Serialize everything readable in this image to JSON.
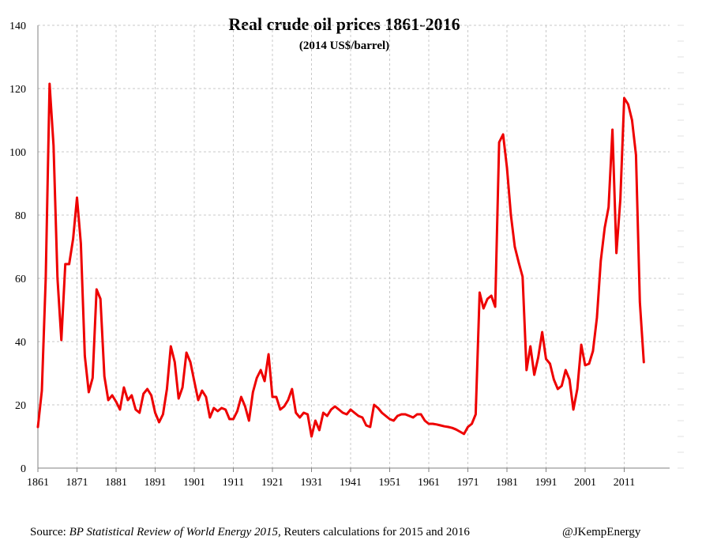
{
  "chart_data": {
    "type": "line",
    "title": "Real crude oil prices 1861-2016",
    "subtitle": "(2014 US$/barrel)",
    "xlabel": "",
    "ylabel": "",
    "xlim": [
      1861,
      2016
    ],
    "ylim": [
      0,
      140
    ],
    "yticks": [
      "0",
      "20",
      "40",
      "60",
      "80",
      "100",
      "120",
      "140"
    ],
    "xticks": [
      "1861",
      "1871",
      "1881",
      "1891",
      "1901",
      "1911",
      "1921",
      "1931",
      "1941",
      "1951",
      "1961",
      "1971",
      "1981",
      "1991",
      "2001",
      "2011"
    ],
    "grid": true,
    "series": [
      {
        "name": "Real crude oil price",
        "color": "#ee0000",
        "x": [
          1861,
          1862,
          1863,
          1864,
          1865,
          1866,
          1867,
          1868,
          1869,
          1870,
          1871,
          1872,
          1873,
          1874,
          1875,
          1876,
          1877,
          1878,
          1879,
          1880,
          1881,
          1882,
          1883,
          1884,
          1885,
          1886,
          1887,
          1888,
          1889,
          1890,
          1891,
          1892,
          1893,
          1894,
          1895,
          1896,
          1897,
          1898,
          1899,
          1900,
          1901,
          1902,
          1903,
          1904,
          1905,
          1906,
          1907,
          1908,
          1909,
          1910,
          1911,
          1912,
          1913,
          1914,
          1915,
          1916,
          1917,
          1918,
          1919,
          1920,
          1921,
          1922,
          1923,
          1924,
          1925,
          1926,
          1927,
          1928,
          1929,
          1930,
          1931,
          1932,
          1933,
          1934,
          1935,
          1936,
          1937,
          1938,
          1939,
          1940,
          1941,
          1942,
          1943,
          1944,
          1945,
          1946,
          1947,
          1948,
          1949,
          1950,
          1951,
          1952,
          1953,
          1954,
          1955,
          1956,
          1957,
          1958,
          1959,
          1960,
          1961,
          1962,
          1963,
          1964,
          1965,
          1966,
          1967,
          1968,
          1969,
          1970,
          1971,
          1972,
          1973,
          1974,
          1975,
          1976,
          1977,
          1978,
          1979,
          1980,
          1981,
          1982,
          1983,
          1984,
          1985,
          1986,
          1987,
          1988,
          1989,
          1990,
          1991,
          1992,
          1993,
          1994,
          1995,
          1996,
          1997,
          1998,
          1999,
          2000,
          2001,
          2002,
          2003,
          2004,
          2005,
          2006,
          2007,
          2008,
          2009,
          2010,
          2011,
          2012,
          2013,
          2014,
          2015,
          2016
        ],
        "values": [
          13.0,
          24.5,
          60.0,
          121.5,
          102.0,
          60.0,
          40.5,
          64.5,
          64.5,
          72.5,
          85.5,
          71.0,
          35.5,
          24.0,
          28.5,
          56.5,
          53.5,
          29.0,
          21.5,
          23.0,
          21.0,
          18.5,
          25.5,
          21.5,
          23.0,
          18.5,
          17.5,
          23.5,
          25.0,
          23.0,
          17.5,
          14.5,
          17.0,
          25.0,
          38.5,
          33.5,
          22.0,
          25.5,
          36.5,
          33.5,
          27.5,
          21.5,
          24.5,
          22.5,
          16.0,
          19.0,
          18.0,
          19.0,
          18.5,
          15.5,
          15.5,
          18.0,
          22.5,
          19.5,
          15.0,
          24.0,
          28.5,
          31.0,
          27.5,
          36.0,
          22.5,
          22.5,
          18.5,
          19.5,
          21.5,
          25.0,
          17.5,
          16.0,
          17.5,
          17.0,
          10.0,
          15.0,
          12.0,
          17.5,
          16.5,
          18.5,
          19.5,
          18.5,
          17.5,
          17.0,
          18.5,
          17.5,
          16.5,
          16.0,
          13.5,
          13.0,
          20.0,
          19.0,
          17.5,
          16.5,
          15.5,
          15.0,
          16.5,
          17.0,
          17.0,
          16.5,
          16.0,
          17.0,
          17.0,
          15.0,
          14.0,
          14.0,
          13.8,
          13.5,
          13.2,
          13.0,
          12.7,
          12.2,
          11.5,
          10.8,
          13.0,
          14.0,
          17.0,
          55.5,
          50.5,
          53.5,
          54.5,
          51.0,
          103.0,
          105.5,
          95.0,
          80.0,
          70.0,
          65.0,
          60.5,
          31.0,
          38.5,
          29.5,
          35.0,
          43.0,
          34.5,
          33.0,
          28.0,
          25.0,
          26.0,
          31.0,
          28.0,
          18.5,
          25.0,
          39.0,
          32.5,
          33.0,
          37.0,
          47.5,
          65.5,
          76.0,
          82.5,
          107.0,
          68.0,
          85.0,
          117.0,
          115.0,
          110.0,
          99.0,
          52.5,
          33.5
        ]
      }
    ]
  },
  "footer": {
    "source_prefix": "Source: ",
    "source_title": "BP Statistical Review of World Energy 2015",
    "source_suffix": ", Reuters calculations for 2015 and 2016",
    "handle": "@JKempEnergy"
  }
}
